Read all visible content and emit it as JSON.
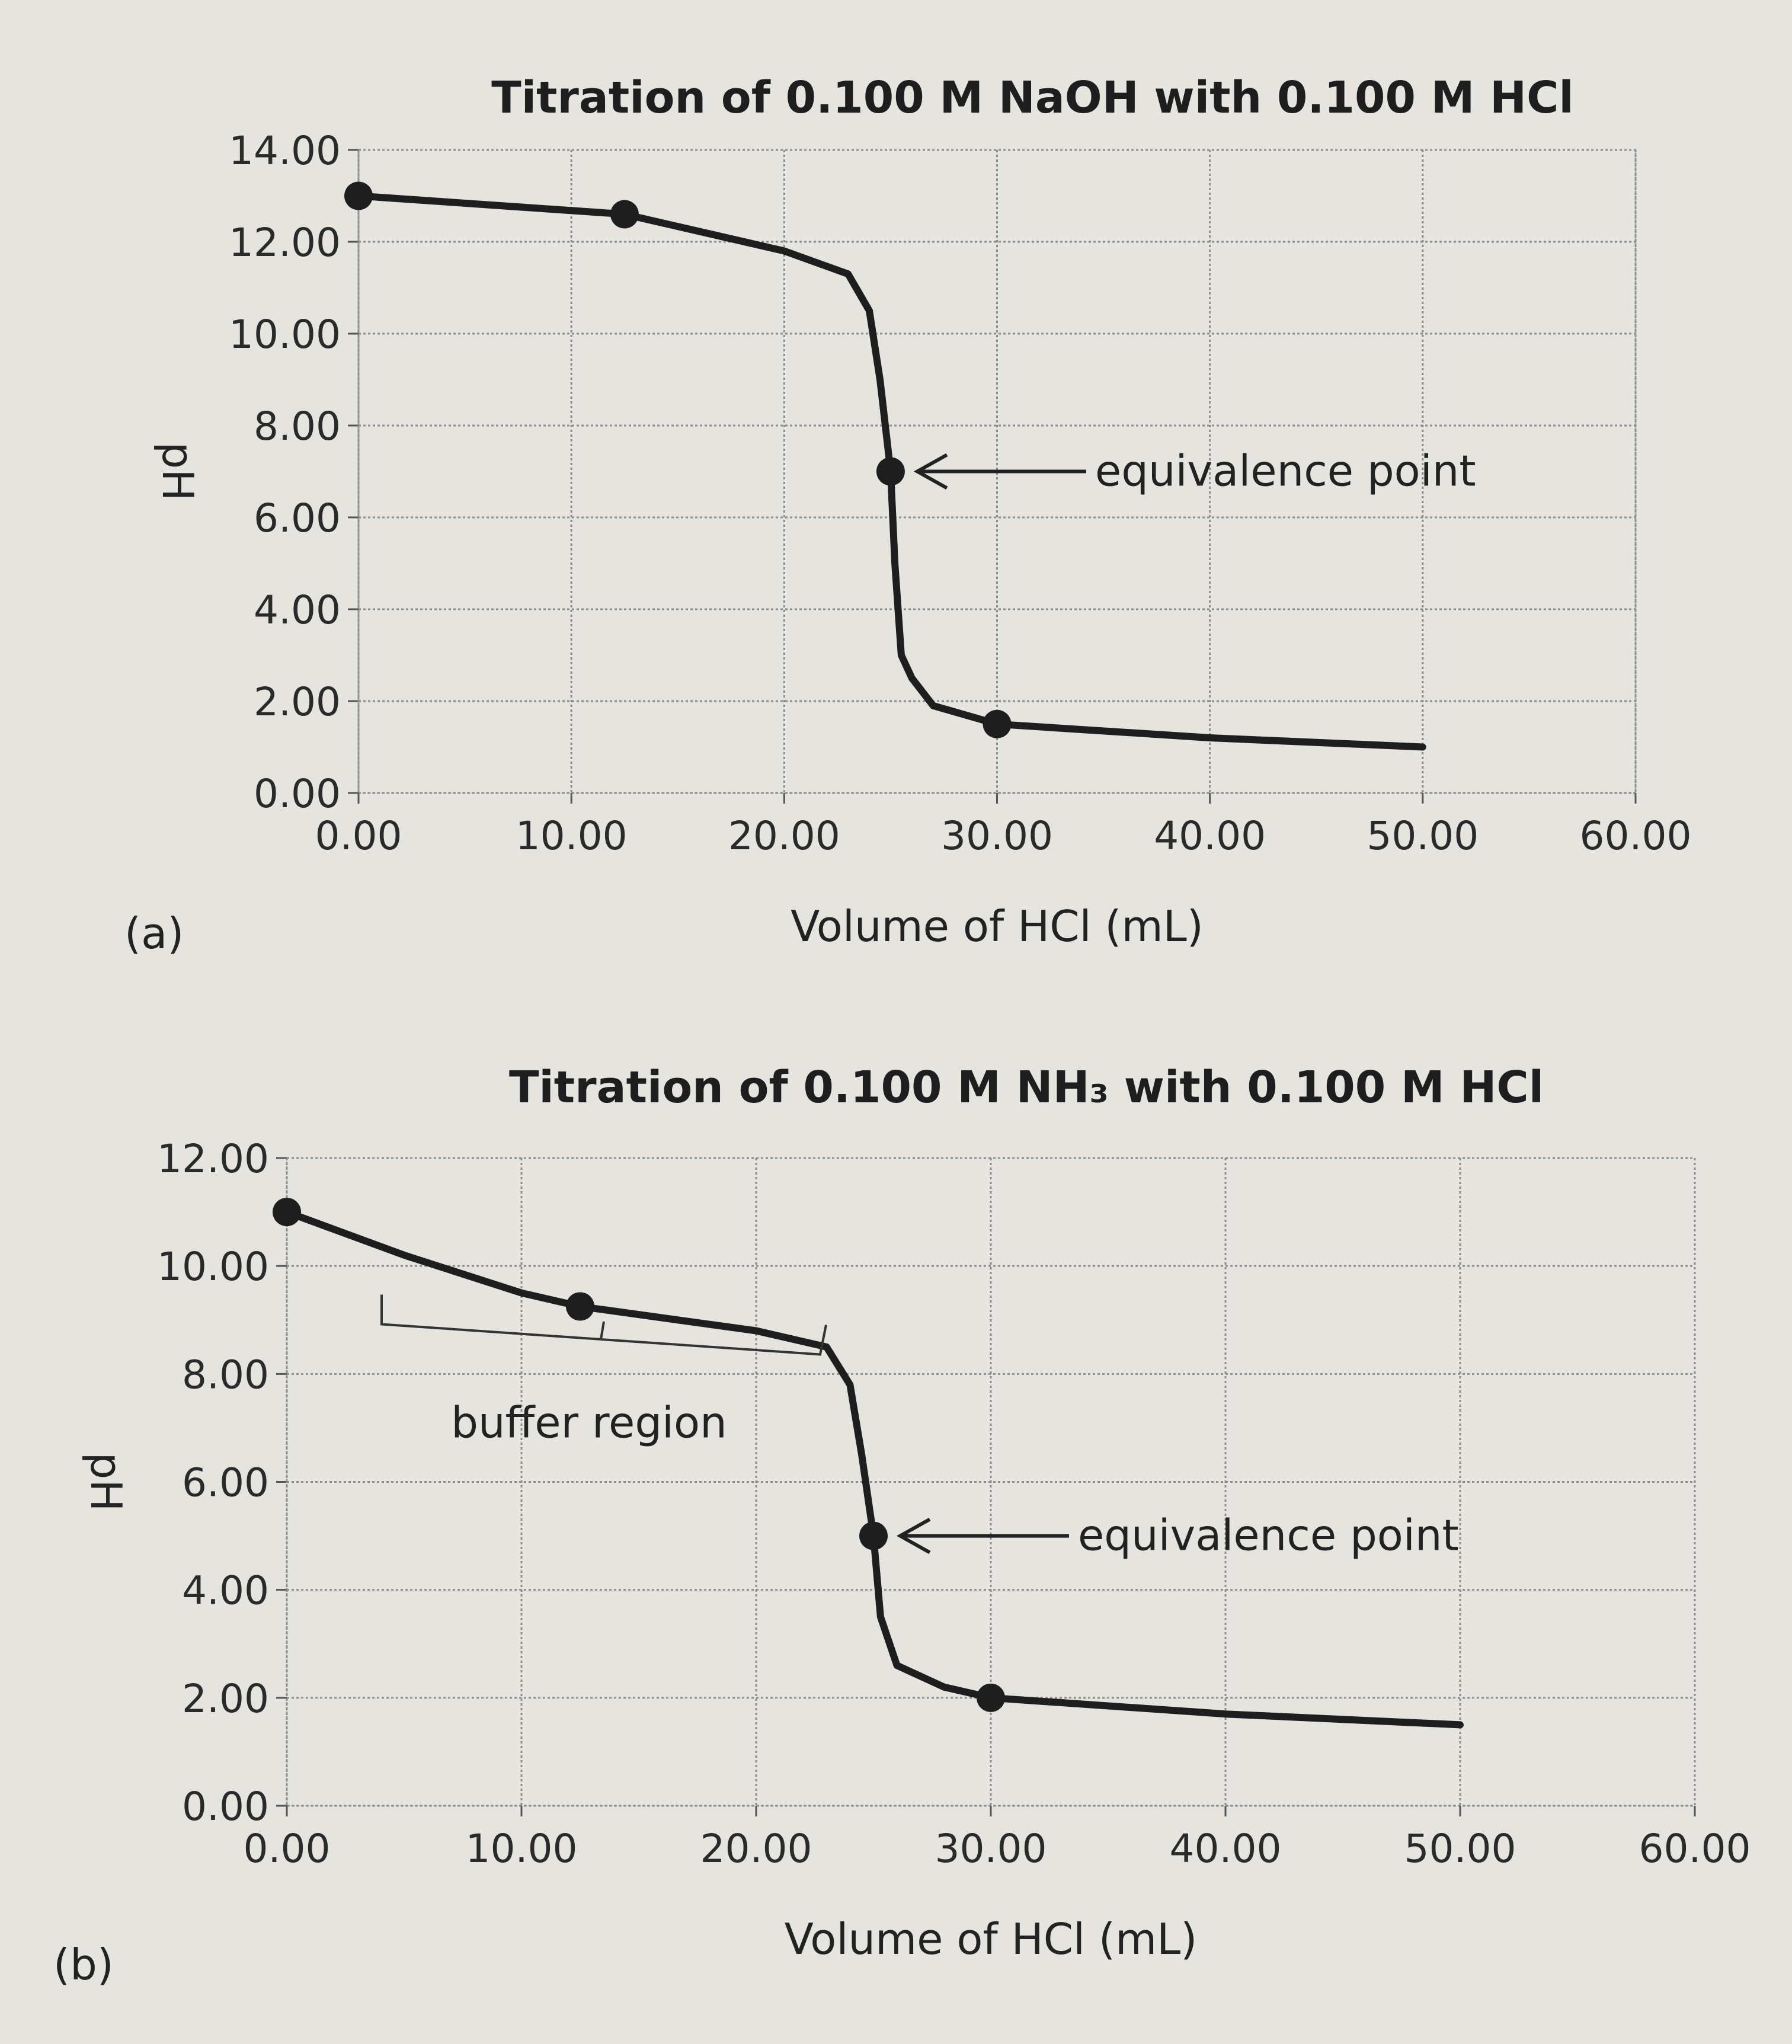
{
  "chart_data": [
    {
      "type": "line",
      "panel": "(a)",
      "title": "Titration of 0.100 M NaOH with 0.100 M HCl",
      "x_label": "Volume of HCl (mL)",
      "y_label": "pH",
      "xlim": [
        0,
        60
      ],
      "ylim": [
        0,
        14
      ],
      "xticks": [
        {
          "value": 0,
          "label": "0.00"
        },
        {
          "value": 10,
          "label": "10.00"
        },
        {
          "value": 20,
          "label": "20.00"
        },
        {
          "value": 30,
          "label": "30.00"
        },
        {
          "value": 40,
          "label": "40.00"
        },
        {
          "value": 50,
          "label": "50.00"
        },
        {
          "value": 60,
          "label": "60.00"
        }
      ],
      "yticks": [
        {
          "value": 0,
          "label": "0.00"
        },
        {
          "value": 2,
          "label": "2.00"
        },
        {
          "value": 4,
          "label": "4.00"
        },
        {
          "value": 6,
          "label": "6.00"
        },
        {
          "value": 8,
          "label": "8.00"
        },
        {
          "value": 10,
          "label": "10.00"
        },
        {
          "value": 12,
          "label": "12.00"
        },
        {
          "value": 14,
          "label": "14.00"
        }
      ],
      "grid": true,
      "series": [
        {
          "color": "#1e1e1e",
          "x": [
            0,
            12.5,
            20,
            23,
            24,
            24.5,
            25,
            25.2,
            25.5,
            26,
            27,
            30,
            40,
            50
          ],
          "values": [
            13.0,
            12.6,
            11.8,
            11.3,
            10.5,
            9.0,
            7.0,
            5.0,
            3.0,
            2.5,
            1.9,
            1.5,
            1.2,
            1.0
          ]
        }
      ],
      "markers": {
        "color": "#1e1e1e",
        "x": [
          0,
          12.5,
          25,
          30
        ],
        "values": [
          13.0,
          12.6,
          7.0,
          1.5
        ]
      },
      "annotations": [
        "equivalence point"
      ]
    },
    {
      "type": "line",
      "panel": "(b)",
      "title": "Titration of 0.100 M NH₃ with 0.100 M HCl",
      "x_label": "Volume of HCl (mL)",
      "y_label": "pH",
      "xlim": [
        0,
        60
      ],
      "ylim": [
        0,
        12
      ],
      "xticks": [
        {
          "value": 0,
          "label": "0.00"
        },
        {
          "value": 10,
          "label": "10.00"
        },
        {
          "value": 20,
          "label": "20.00"
        },
        {
          "value": 30,
          "label": "30.00"
        },
        {
          "value": 40,
          "label": "40.00"
        },
        {
          "value": 50,
          "label": "50.00"
        },
        {
          "value": 60,
          "label": "60.00"
        }
      ],
      "yticks": [
        {
          "value": 0,
          "label": "0.00"
        },
        {
          "value": 2,
          "label": "2.00"
        },
        {
          "value": 4,
          "label": "4.00"
        },
        {
          "value": 6,
          "label": "6.00"
        },
        {
          "value": 8,
          "label": "8.00"
        },
        {
          "value": 10,
          "label": "10.00"
        },
        {
          "value": 12,
          "label": "12.00"
        }
      ],
      "grid": true,
      "series": [
        {
          "color": "#1e1e1e",
          "x": [
            0,
            5,
            10,
            12.5,
            20,
            23,
            24,
            24.5,
            25,
            25.3,
            26,
            28,
            30,
            40,
            50
          ],
          "values": [
            11.0,
            10.2,
            9.5,
            9.25,
            8.8,
            8.5,
            7.8,
            6.5,
            5.0,
            3.5,
            2.6,
            2.2,
            2.0,
            1.7,
            1.5
          ]
        }
      ],
      "markers": {
        "color": "#1e1e1e",
        "x": [
          0,
          12.5,
          25,
          30
        ],
        "values": [
          11.0,
          9.25,
          5.0,
          2.0
        ]
      },
      "annotations": [
        "equivalence point",
        "buffer region"
      ]
    }
  ]
}
